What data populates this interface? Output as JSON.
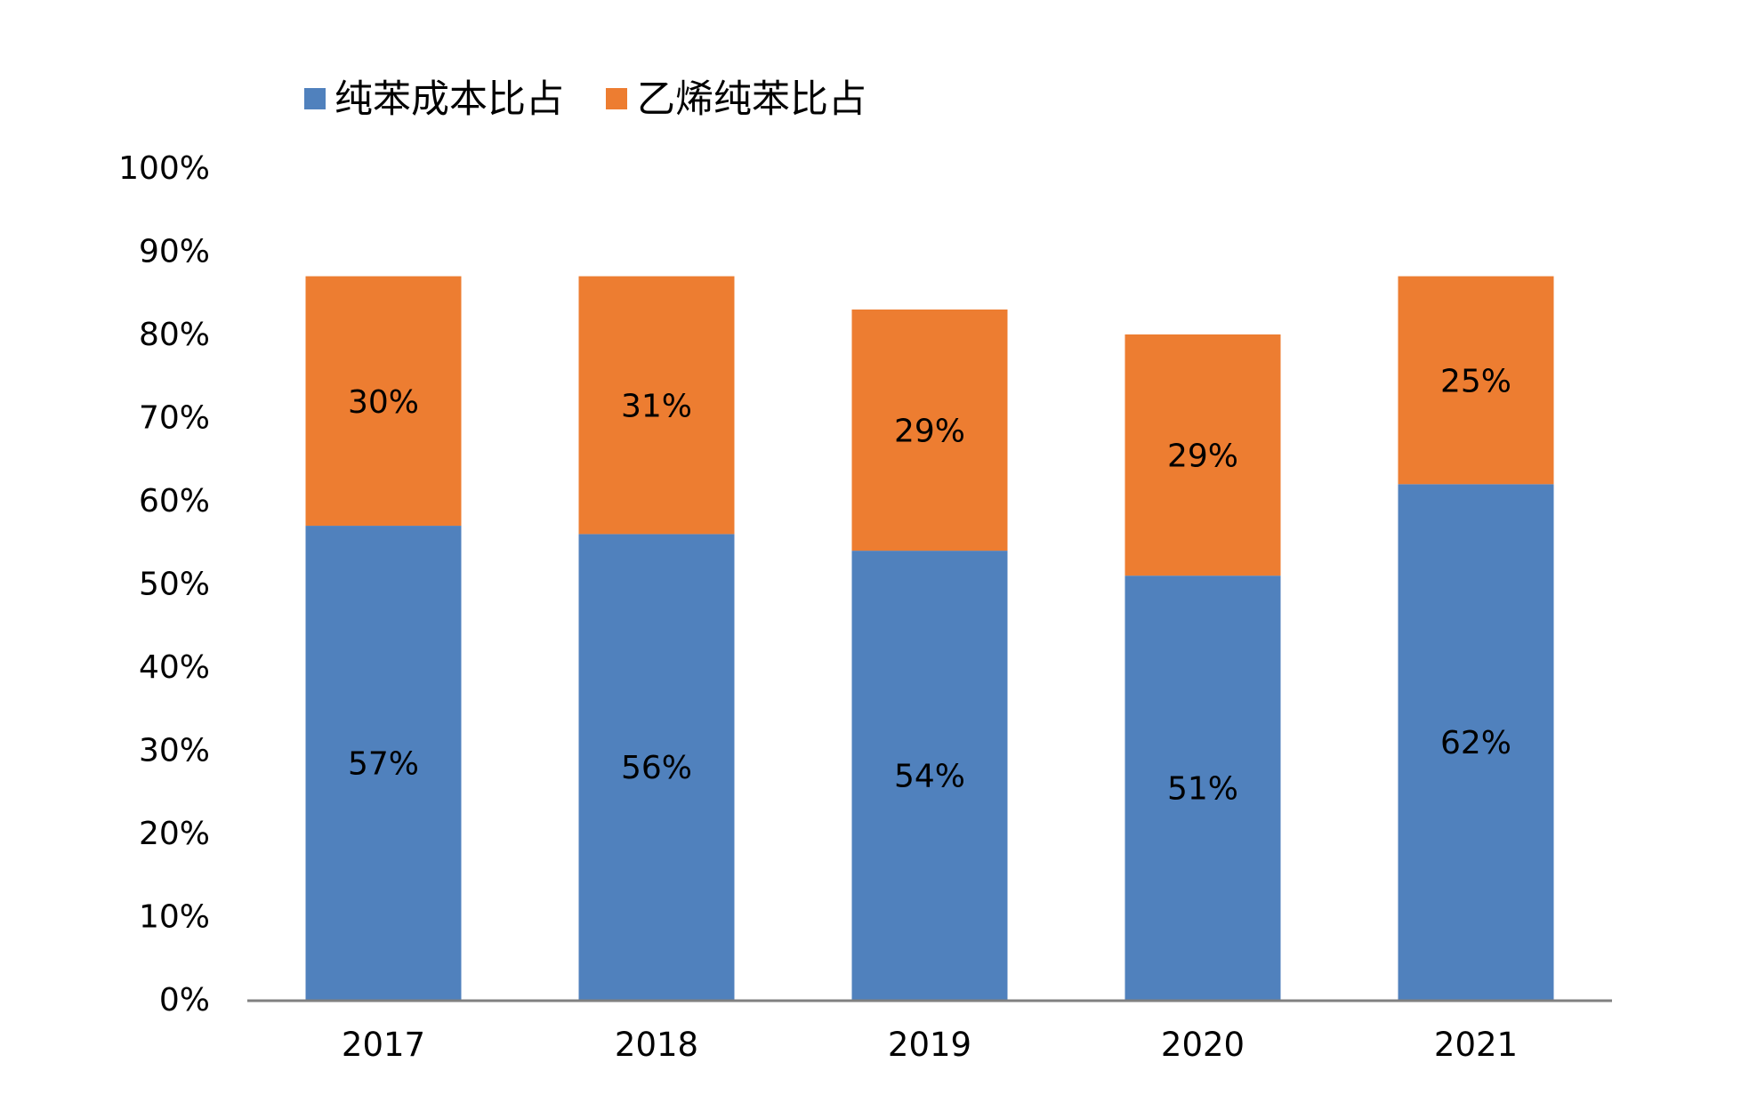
{
  "chart_data": {
    "type": "bar",
    "stacked": true,
    "categories": [
      "2017",
      "2018",
      "2019",
      "2020",
      "2021"
    ],
    "series": [
      {
        "name": "纯苯成本比占",
        "color": "#5081BD",
        "values": [
          57,
          56,
          54,
          51,
          62
        ],
        "labels": [
          "57%",
          "56%",
          "54%",
          "51%",
          "62%"
        ]
      },
      {
        "name": "乙烯纯苯比占",
        "color": "#ED7D31",
        "values": [
          30,
          31,
          29,
          29,
          25
        ],
        "labels": [
          "30%",
          "31%",
          "29%",
          "29%",
          "25%"
        ]
      }
    ],
    "ylim": [
      0,
      100
    ],
    "yticks": [
      "0%",
      "10%",
      "20%",
      "30%",
      "40%",
      "50%",
      "60%",
      "70%",
      "80%",
      "90%",
      "100%"
    ],
    "legend_position": "top-left",
    "grid": false,
    "axis_color": "#808080"
  }
}
